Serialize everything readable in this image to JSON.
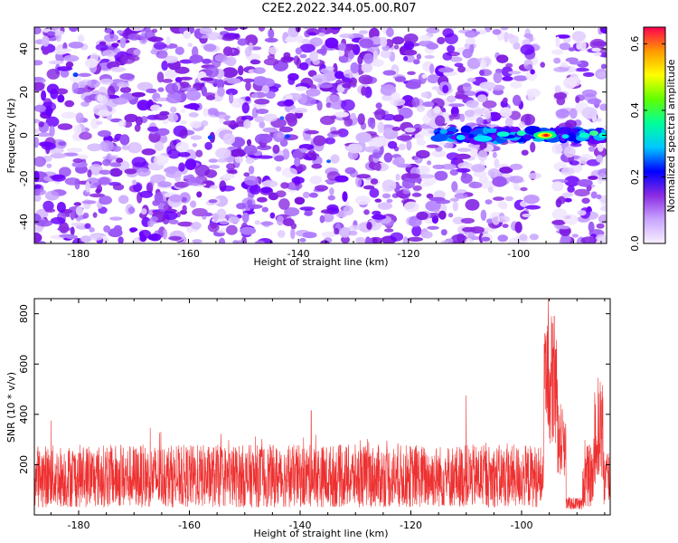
{
  "title": "C2E2.2022.344.05.00.R07",
  "chart_data": [
    {
      "type": "heatmap",
      "xlabel": "Height of straight line (km)",
      "ylabel": "Frequency (Hz)",
      "xlim": [
        -188,
        -84
      ],
      "ylim": [
        -50,
        50
      ],
      "xticks": [
        -180,
        -160,
        -140,
        -120,
        -100
      ],
      "yticks": [
        -40,
        -20,
        0,
        20,
        40
      ],
      "colorbar": {
        "label": "Normalized spectral amplitude",
        "range": [
          0,
          0.65
        ],
        "ticks": [
          0.0,
          0.2,
          0.4,
          0.6
        ],
        "colors": [
          "#ffffff",
          "#b58cff",
          "#8000ff",
          "#0000ff",
          "#00ffff",
          "#00ff00",
          "#ffff00",
          "#ff8000",
          "#ff0040"
        ]
      },
      "features": [
        {
          "x_range": [
            -115,
            -84
          ],
          "frequency": 0,
          "amplitude_max": 0.65,
          "peak_x": -95
        }
      ],
      "gaps": [
        [
          -97,
          -93
        ]
      ],
      "grid": false
    },
    {
      "type": "line",
      "xlabel": "Height of straight line (km)",
      "ylabel": "SNR (10 * v/v)",
      "xlim": [
        -188,
        -84
      ],
      "ylim": [
        0,
        860
      ],
      "xticks": [
        -180,
        -160,
        -140,
        -120,
        -100
      ],
      "yticks": [
        200,
        400,
        600,
        800
      ],
      "series": [
        {
          "color": "#ee3030",
          "baseline_mean": 130,
          "baseline_spread": [
            30,
            280
          ],
          "peaks": [
            {
              "x": -95.2,
              "y": 860
            },
            {
              "x": -94.6,
              "y": 790
            },
            {
              "x": -94.1,
              "y": 790
            },
            {
              "x": -86.2,
              "y": 545
            },
            {
              "x": -85.8,
              "y": 530
            },
            {
              "x": -110,
              "y": 475
            },
            {
              "x": -138,
              "y": 415
            },
            {
              "x": -185,
              "y": 375
            }
          ]
        }
      ],
      "grid": false
    }
  ]
}
